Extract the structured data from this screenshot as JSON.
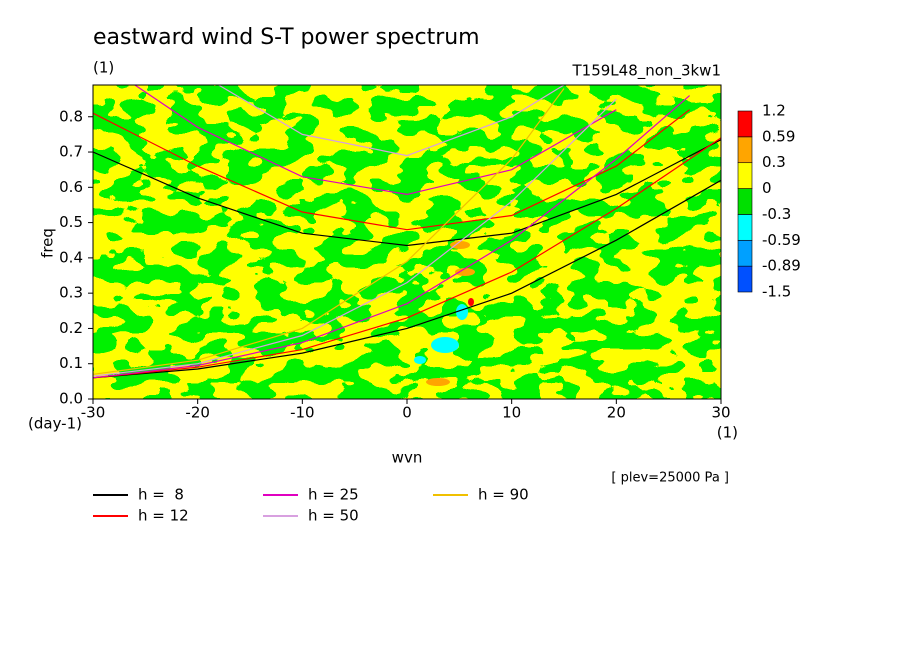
{
  "chart_data": {
    "type": "contour",
    "title": "eastward wind S-T power spectrum",
    "subtitle_left": "(1)",
    "subtitle_right": "T159L48_non_3kw1",
    "xlabel": "wvn",
    "xunit": "(1)",
    "ylabel": "freq",
    "yunit": "(day-1)",
    "annotation": "[ plev=25000 Pa ]",
    "xlim": [
      -30,
      30
    ],
    "ylim": [
      0,
      0.89
    ],
    "xticks": [
      -30,
      -20,
      -10,
      0,
      10,
      20,
      30
    ],
    "yticks": [
      {
        "value": 0,
        "label": "0.0"
      },
      0.1,
      0.2,
      0.3,
      0.4,
      0.5,
      0.6,
      0.7,
      0.8
    ],
    "colorbar": {
      "levels": [
        -1.5,
        -0.89,
        -0.59,
        -0.3,
        0,
        0.3,
        0.59,
        1.2
      ],
      "colors": [
        "#0050ff",
        "#00a0ff",
        "#00ffff",
        "#00e000",
        "#ffff00",
        "#ffa500",
        "#ff0000"
      ]
    },
    "series": [
      {
        "name": "h =  8",
        "color": "#000000",
        "x": [
          -30,
          -20,
          -10,
          0,
          10,
          20,
          30,
          null,
          -30,
          -20,
          -10,
          0,
          10,
          20,
          30
        ],
        "values": [
          0.06,
          0.085,
          0.13,
          0.2,
          0.3,
          0.45,
          0.62,
          null,
          0.7,
          0.57,
          0.47,
          0.435,
          0.47,
          0.58,
          0.735
        ]
      },
      {
        "name": "h = 12",
        "color": "#ff0000",
        "x": [
          -30,
          -20,
          -10,
          0,
          10,
          20,
          30,
          null,
          -30,
          -20,
          -10,
          0,
          10,
          20,
          27
        ],
        "values": [
          0.06,
          0.09,
          0.14,
          0.23,
          0.36,
          0.54,
          0.74,
          null,
          0.81,
          0.66,
          0.53,
          0.48,
          0.52,
          0.66,
          0.82
        ]
      },
      {
        "name": "h = 25",
        "color": "#e000c0",
        "x": [
          -30,
          -20,
          -10,
          0,
          10,
          20,
          27,
          null,
          -26,
          -20,
          -10,
          0,
          10,
          20
        ],
        "values": [
          0.06,
          0.095,
          0.16,
          0.27,
          0.45,
          0.68,
          0.86,
          null,
          0.89,
          0.77,
          0.63,
          0.58,
          0.65,
          0.82
        ]
      },
      {
        "name": "h = 50",
        "color": "#d8a0e0",
        "x": [
          -30,
          -20,
          -10,
          0,
          10,
          20,
          null,
          -18,
          -10,
          0,
          10,
          15
        ],
        "values": [
          0.065,
          0.1,
          0.18,
          0.33,
          0.56,
          0.85,
          null,
          0.89,
          0.75,
          0.69,
          0.8,
          0.89
        ]
      },
      {
        "name": "h = 90",
        "color": "#f0c000",
        "x": [
          -30,
          -20,
          -10,
          0,
          10,
          15
        ],
        "values": [
          0.07,
          0.11,
          0.2,
          0.39,
          0.68,
          0.88
        ]
      }
    ]
  }
}
